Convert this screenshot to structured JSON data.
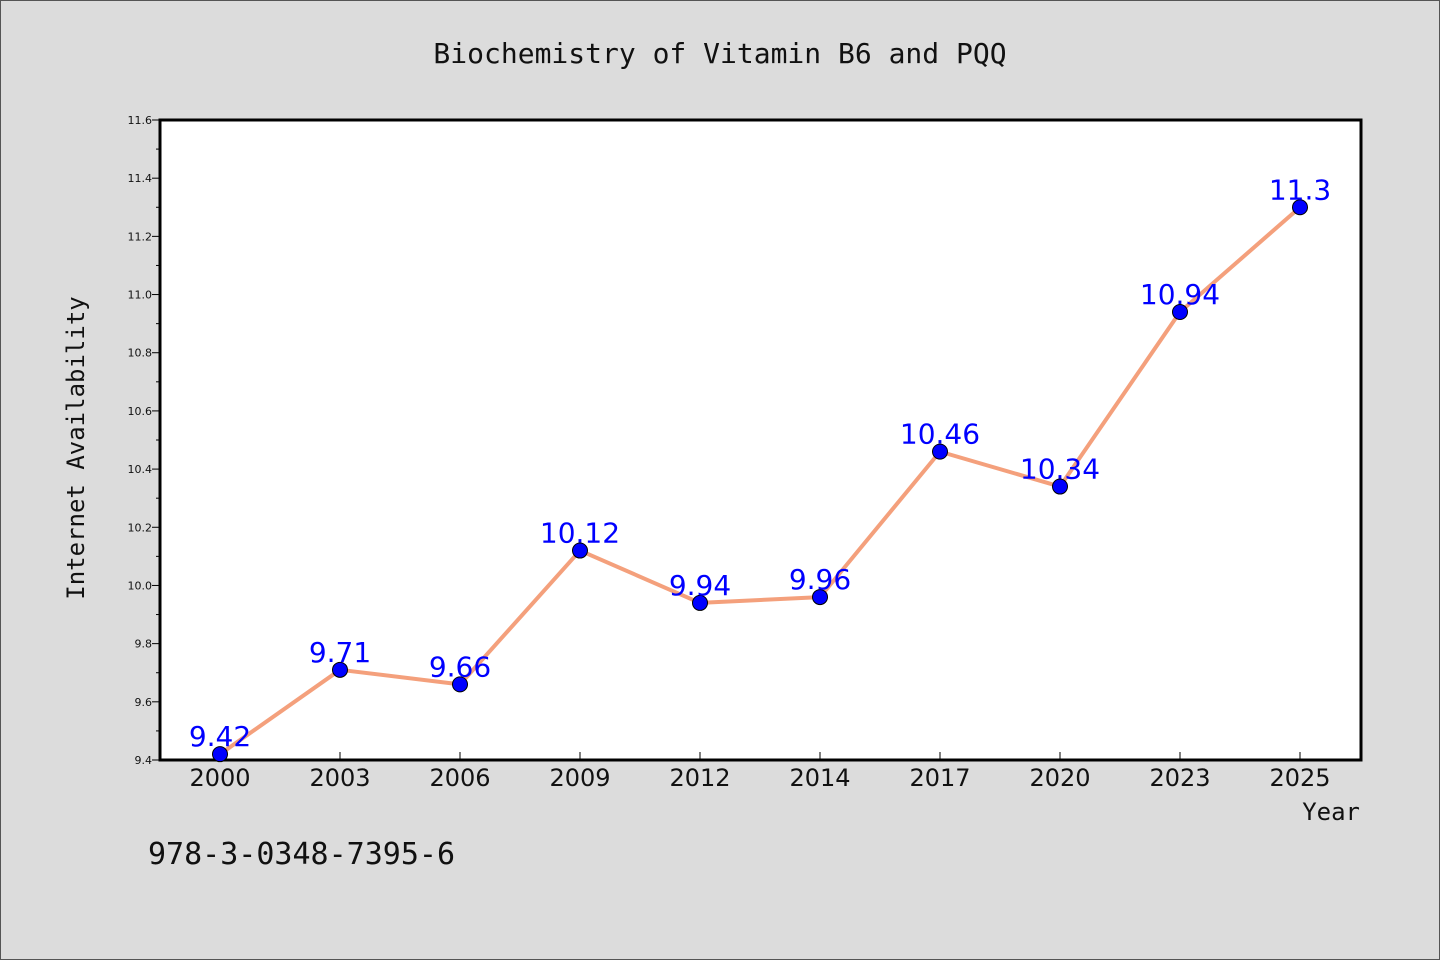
{
  "chart_data": {
    "type": "line",
    "title": "Biochemistry of Vitamin B6 and PQQ",
    "xlabel": "Year",
    "ylabel": "Internet Availability",
    "categories": [
      "2000",
      "2003",
      "2006",
      "2009",
      "2012",
      "2014",
      "2017",
      "2020",
      "2023",
      "2025"
    ],
    "series": [
      {
        "values": [
          9.42,
          9.71,
          9.66,
          10.12,
          9.94,
          9.96,
          10.46,
          10.34,
          10.94,
          11.3
        ],
        "labels": [
          "9.42",
          "9.71",
          "9.66",
          "10.12",
          "9.94",
          "9.96",
          "10.46",
          "10.34",
          "10.94",
          "11.3"
        ],
        "line_color": "#f4a07c",
        "marker_color": "#0000ff"
      }
    ],
    "ylim": [
      9.4,
      11.6
    ],
    "yticks": [
      "9.4",
      "9.6",
      "9.8",
      "10.0",
      "10.2",
      "10.4",
      "10.6",
      "10.8",
      "11.0",
      "11.2",
      "11.4",
      "11.6"
    ],
    "grid": false,
    "legend": "none"
  },
  "footer": {
    "isbn": "978-3-0348-7395-6"
  }
}
